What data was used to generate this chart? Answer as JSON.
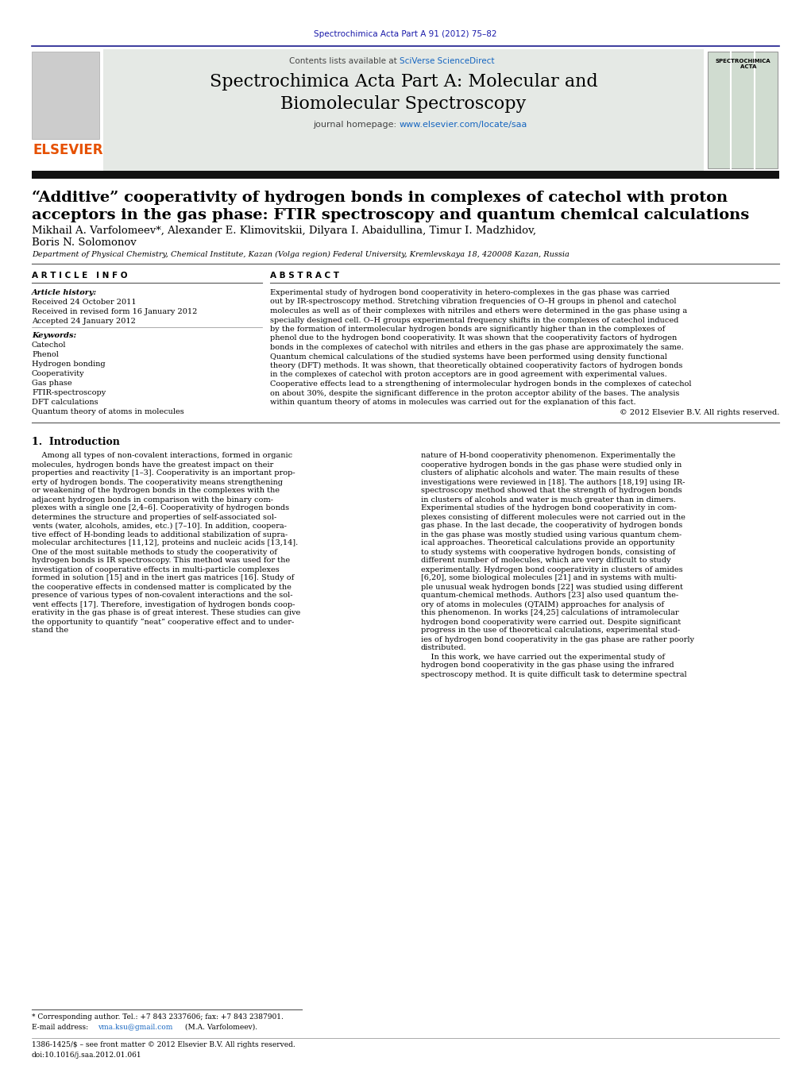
{
  "page_width": 10.21,
  "page_height": 13.51,
  "dpi": 100,
  "background_color": "#ffffff",
  "top_journal_ref": "Spectrochimica Acta Part A 91 (2012) 75–82",
  "top_journal_ref_color": "#1a1aaa",
  "header_bg_color": "#e5e9e5",
  "header_sciverse_color": "#1565C0",
  "header_journal_homepage_url_color": "#1565C0",
  "article_title_line1": "“Additive” cooperativity of hydrogen bonds in complexes of catechol with proton",
  "article_title_line2": "acceptors in the gas phase: FTIR spectroscopy and quantum chemical calculations",
  "authors_line1": "Mikhail A. Varfolomeev*, Alexander E. Klimovitskii, Dilyara I. Abaidullina, Timur I. Madzhidov,",
  "authors_line2": "Boris N. Solomonov",
  "affiliation": "Department of Physical Chemistry, Chemical Institute, Kazan (Volga region) Federal University, Kremlevskaya 18, 420008 Kazan, Russia",
  "article_history_label": "Article history:",
  "received1": "Received 24 October 2011",
  "received2": "Received in revised form 16 January 2012",
  "accepted": "Accepted 24 January 2012",
  "keywords_label": "Keywords:",
  "keywords": [
    "Catechol",
    "Phenol",
    "Hydrogen bonding",
    "Cooperativity",
    "Gas phase",
    "FTIR-spectroscopy",
    "DFT calculations",
    "Quantum theory of atoms in molecules"
  ],
  "abstract_lines": [
    "Experimental study of hydrogen bond cooperativity in hetero-complexes in the gas phase was carried out by IR-spectroscopy method. Stretching vibration frequencies of O–H groups in phenol and catechol",
    "molecules as well as of their complexes with nitriles and ethers were determined in the gas phase using a specially designed cell. O–H groups experimental frequency shifts in the complexes of catechol induced",
    "by the formation of intermolecular hydrogen bonds are significantly higher than in the complexes of phenol due to the hydrogen bond cooperativity. It was shown that the cooperativity factors of hydrogen",
    "bonds in the complexes of catechol with nitriles and ethers in the gas phase are approximately the same. Quantum chemical calculations of the studied systems have been performed using density functional",
    "theory (DFT) methods. It was shown, that theoretically obtained cooperativity factors of hydrogen bonds in the complexes of catechol with proton acceptors are in good agreement with experimental values.",
    "Cooperative effects lead to a strengthening of intermolecular hydrogen bonds in the complexes of catechol on about 30%, despite the significant difference in the proton acceptor ability of the bases. The analysis",
    "within quantum theory of atoms in molecules was carried out for the explanation of this fact."
  ],
  "intro_left_lines": [
    "    Among all types of non-covalent interactions, formed in organic",
    "molecules, hydrogen bonds have the greatest impact on their",
    "properties and reactivity [1–3]. Cooperativity is an important prop-",
    "erty of hydrogen bonds. The cooperativity means strengthening",
    "or weakening of the hydrogen bonds in the complexes with the",
    "adjacent hydrogen bonds in comparison with the binary com-",
    "plexes with a single one [2,4–6]. Cooperativity of hydrogen bonds",
    "determines the structure and properties of self-associated sol-",
    "vents (water, alcohols, amides, etc.) [7–10]. In addition, coopera-",
    "tive effect of H-bonding leads to additional stabilization of supra-",
    "molecular architectures [11,12], proteins and nucleic acids [13,14].",
    "One of the most suitable methods to study the cooperativity of",
    "hydrogen bonds is IR spectroscopy. This method was used for the",
    "investigation of cooperative effects in multi-particle complexes",
    "formed in solution [15] and in the inert gas matrices [16]. Study of",
    "the cooperative effects in condensed matter is complicated by the",
    "presence of various types of non-covalent interactions and the sol-",
    "vent effects [17]. Therefore, investigation of hydrogen bonds coop-",
    "erativity in the gas phase is of great interest. These studies can give",
    "the opportunity to quantify “neat” cooperative effect and to under-",
    "stand the"
  ],
  "intro_right_lines": [
    "nature of H-bond cooperativity phenomenon. Experimentally the",
    "cooperative hydrogen bonds in the gas phase were studied only in",
    "clusters of aliphatic alcohols and water. The main results of these",
    "investigations were reviewed in [18]. The authors [18,19] using IR-",
    "spectroscopy method showed that the strength of hydrogen bonds",
    "in clusters of alcohols and water is much greater than in dimers.",
    "Experimental studies of the hydrogen bond cooperativity in com-",
    "plexes consisting of different molecules were not carried out in the",
    "gas phase. In the last decade, the cooperativity of hydrogen bonds",
    "in the gas phase was mostly studied using various quantum chem-",
    "ical approaches. Theoretical calculations provide an opportunity",
    "to study systems with cooperative hydrogen bonds, consisting of",
    "different number of molecules, which are very difficult to study",
    "experimentally. Hydrogen bond cooperativity in clusters of amides",
    "[6,20], some biological molecules [21] and in systems with multi-",
    "ple unusual weak hydrogen bonds [22] was studied using different",
    "quantum-chemical methods. Authors [23] also used quantum the-",
    "ory of atoms in molecules (QTAIM) approaches for analysis of",
    "this phenomenon. In works [24,25] calculations of intramolecular",
    "hydrogen bond cooperativity were carried out. Despite significant",
    "progress in the use of theoretical calculations, experimental stud-",
    "ies of hydrogen bond cooperativity in the gas phase are rather poorly",
    "distributed.",
    "    In this work, we have carried out the experimental study of",
    "hydrogen bond cooperativity in the gas phase using the infrared",
    "spectroscopy method. It is quite difficult task to determine spectral"
  ],
  "footnote_star": "* Corresponding author. Tel.: +7 843 2337606; fax: +7 843 2387901.",
  "footnote_email": "vma.ksu@gmail.com",
  "footnote_email_suffix": " (M.A. Varfolomeev).",
  "footnote_issn": "1386-1425/$ – see front matter © 2012 Elsevier B.V. All rights reserved.",
  "footnote_doi": "doi:10.1016/j.saa.2012.01.061"
}
